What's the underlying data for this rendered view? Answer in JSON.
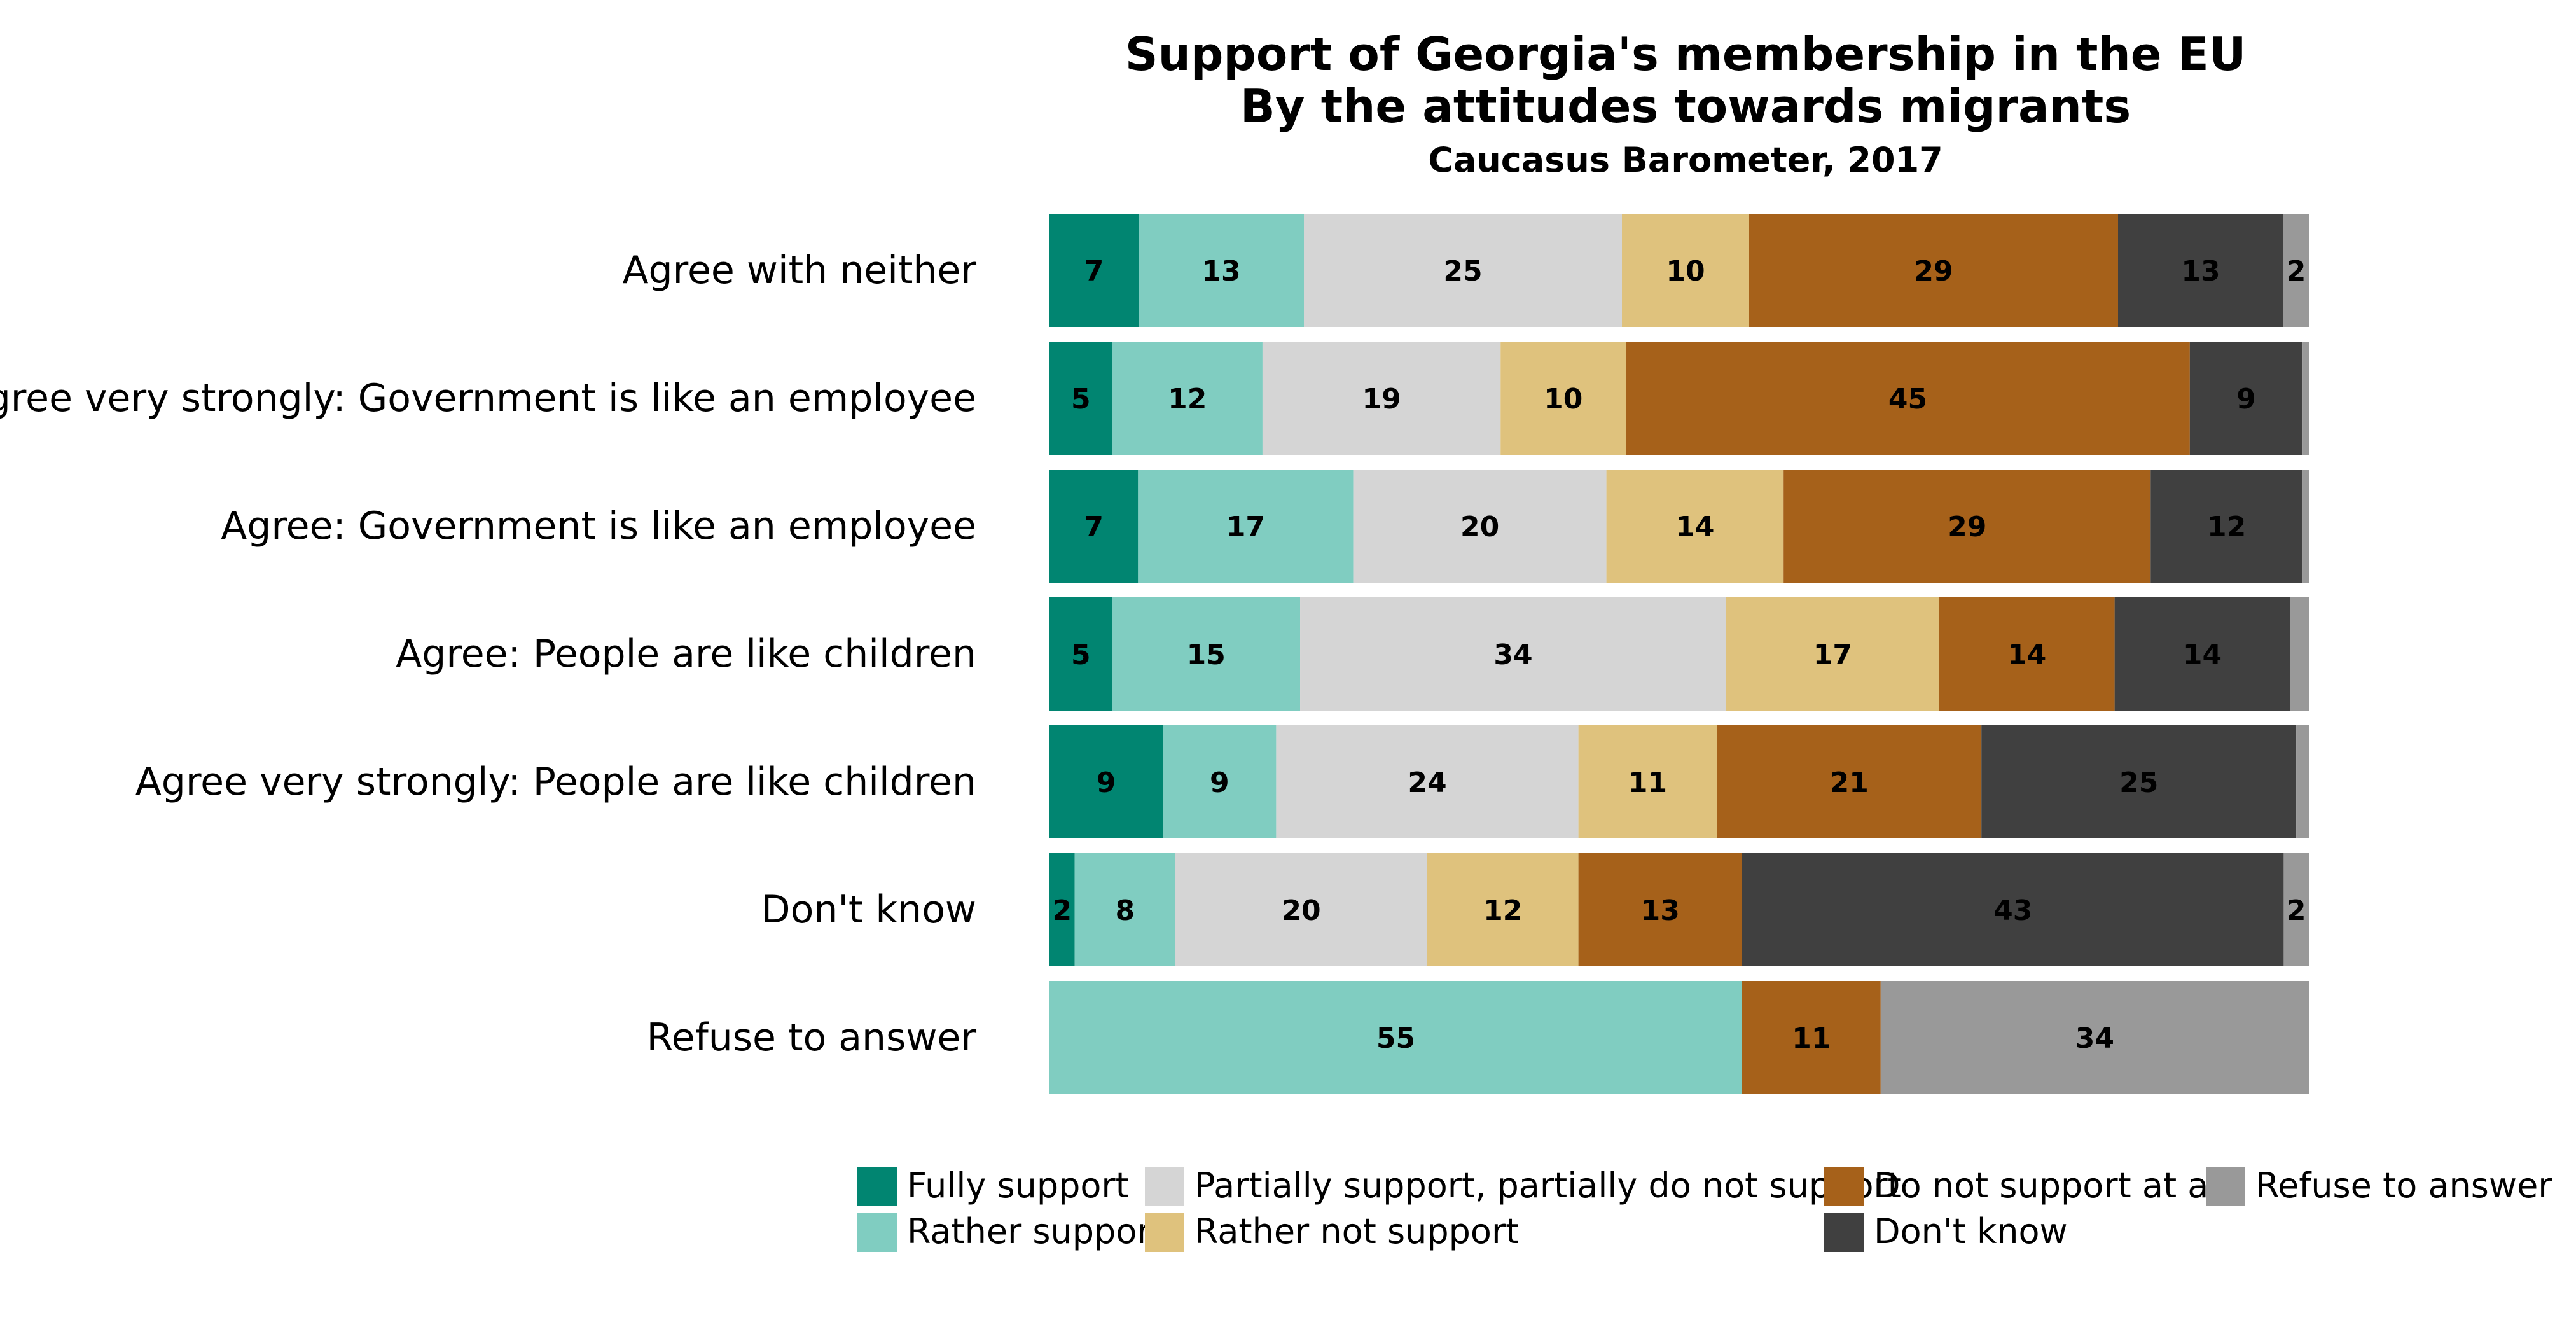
{
  "chart_data": {
    "type": "bar",
    "orientation": "horizontal",
    "stacked": true,
    "normalized_percent": true,
    "title": "Support of Georgia's membership in the EU",
    "subtitle": "By the attitudes towards migrants",
    "caption": "Caucasus Barometer, 2017",
    "xlabel": "",
    "ylabel": "",
    "grid": false,
    "legend_position": "bottom",
    "categories": [
      "Agree with neither",
      "Agree very strongly: Government is like an employee",
      "Agree: Government is like an employee",
      "Agree: People are like children",
      "Agree very strongly: People are like children",
      "Don't know",
      "Refuse to answer"
    ],
    "series": [
      {
        "name": "Fully support",
        "color": "#018571",
        "values": [
          7,
          5,
          7,
          5,
          9,
          2,
          0
        ]
      },
      {
        "name": "Rather support",
        "color": "#80cdc1",
        "values": [
          13,
          12,
          17,
          15,
          9,
          8,
          55
        ]
      },
      {
        "name": "Partially support, partially do not support",
        "color": "#d5d5d5",
        "values": [
          25,
          19,
          20,
          34,
          24,
          20,
          0
        ]
      },
      {
        "name": "Rather not support",
        "color": "#dfc27d",
        "values": [
          10,
          10,
          14,
          17,
          11,
          12,
          0
        ]
      },
      {
        "name": "Do not support at all",
        "color": "#a6611a",
        "values": [
          29,
          45,
          29,
          14,
          21,
          13,
          11
        ]
      },
      {
        "name": "Don't know",
        "color": "#404040",
        "values": [
          13,
          9,
          12,
          14,
          25,
          43,
          0
        ]
      },
      {
        "name": "Refuse to answer",
        "color": "#999999",
        "values": [
          2,
          0.5,
          0.5,
          1.5,
          1,
          2,
          34
        ]
      }
    ],
    "label_min_value": 2,
    "legend_order": [
      "Fully support",
      "Rather support",
      "Partially support, partially do not support",
      "Rather not support",
      "Do not support at all",
      "Don't know",
      "Refuse to answer"
    ]
  }
}
